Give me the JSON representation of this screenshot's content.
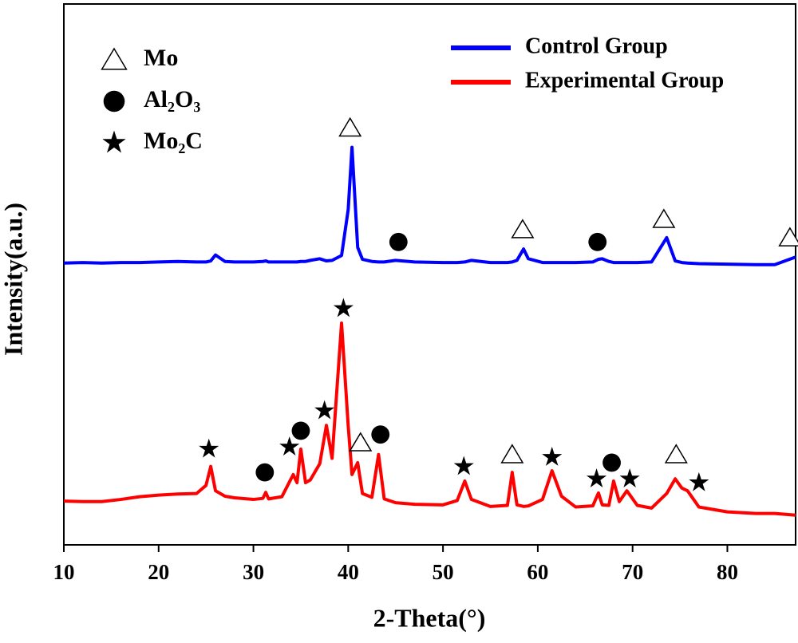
{
  "chart_data": {
    "type": "line",
    "xlabel": "2-Theta(°)",
    "ylabel": "Intensity(a.u.)",
    "xlim": [
      10,
      87.2
    ],
    "xticks": [
      10,
      20,
      30,
      40,
      50,
      60,
      70,
      80
    ],
    "ylim": [
      0,
      100
    ],
    "legend": "upper right",
    "x": [
      10,
      12,
      14,
      16,
      18,
      20,
      22,
      24,
      25,
      25.5,
      26,
      27,
      28,
      30,
      31,
      31.3,
      31.6,
      33,
      34.2,
      34.6,
      35,
      35.5,
      36,
      37,
      37.7,
      38.3,
      39.3,
      40.0,
      40.4,
      41.0,
      41.5,
      42.5,
      43.2,
      43.8,
      45,
      47,
      50,
      51.5,
      52.3,
      53,
      55,
      56.8,
      57.3,
      57.8,
      58.5,
      59,
      60.5,
      61.5,
      62.5,
      64,
      65.8,
      66.4,
      66.8,
      67.5,
      68.0,
      68.6,
      69.4,
      70.5,
      72,
      73.6,
      74.5,
      75.2,
      75.8,
      77,
      80,
      83,
      85,
      87.2
    ],
    "series": [
      {
        "name": "Control Group",
        "color": "#0000ff",
        "values": [
          52.1,
          52.2,
          52.1,
          52.2,
          52.2,
          52.3,
          52.4,
          52.3,
          52.3,
          52.5,
          53.6,
          52.4,
          52.3,
          52.3,
          52.4,
          52.5,
          52.3,
          52.3,
          52.3,
          52.3,
          52.4,
          52.4,
          52.6,
          52.9,
          52.5,
          52.6,
          53.5,
          62,
          73.5,
          55,
          52.8,
          52.4,
          52.3,
          52.3,
          52.6,
          52.3,
          52.2,
          52.2,
          52.3,
          52.6,
          52.2,
          52.2,
          52.3,
          52.6,
          54.7,
          52.9,
          52.2,
          52.2,
          52.2,
          52.2,
          52.3,
          52.8,
          52.9,
          52.4,
          52.2,
          52.2,
          52.2,
          52.2,
          52.3,
          56.8,
          52.5,
          52.2,
          52.1,
          52,
          51.9,
          51.8,
          51.8,
          53.2
        ]
      },
      {
        "name": "Experimental Group",
        "color": "#ff0000",
        "values": [
          8.1,
          8.0,
          8.0,
          8.4,
          8.9,
          9.2,
          9.4,
          9.5,
          11,
          14.5,
          10,
          9,
          8.7,
          8.4,
          8.6,
          9.7,
          8.5,
          8.9,
          13,
          11.5,
          17.7,
          11.5,
          12,
          15,
          22.1,
          16,
          41,
          22,
          13,
          15.2,
          9.5,
          8.8,
          16.7,
          8.5,
          7.8,
          7.5,
          7.4,
          8.2,
          11.8,
          8.4,
          7.1,
          7.3,
          13.4,
          7.4,
          7.1,
          7.2,
          8.4,
          13.7,
          9,
          7,
          7.2,
          9.6,
          7.4,
          7.3,
          11.8,
          8,
          10,
          7.3,
          6.8,
          9.5,
          12.2,
          10.5,
          10,
          7,
          6.1,
          5.8,
          5.8,
          5.5
        ]
      }
    ],
    "phases": [
      {
        "name": "Mo",
        "symbol": "triangle",
        "points": [
          {
            "x": 40.2,
            "y": 77.1
          },
          {
            "x": 58.4,
            "y": 58.3
          },
          {
            "x": 73.3,
            "y": 60.2
          },
          {
            "x": 86.6,
            "y": 56.8
          },
          {
            "x": 41.3,
            "y": 18.9
          },
          {
            "x": 57.3,
            "y": 16.7
          },
          {
            "x": 74.6,
            "y": 16.7
          }
        ]
      },
      {
        "name": "Al₂O₃",
        "symbol": "circle",
        "points": [
          {
            "x": 45.3,
            "y": 56
          },
          {
            "x": 66.3,
            "y": 56
          },
          {
            "x": 31.2,
            "y": 13.4
          },
          {
            "x": 35.0,
            "y": 21.1
          },
          {
            "x": 43.4,
            "y": 20.4
          },
          {
            "x": 67.8,
            "y": 15.2
          }
        ]
      },
      {
        "name": "Mo₂C",
        "symbol": "star",
        "points": [
          {
            "x": 39.5,
            "y": 43.7
          },
          {
            "x": 25.3,
            "y": 17.7
          },
          {
            "x": 33.8,
            "y": 18.1
          },
          {
            "x": 37.5,
            "y": 24.8
          },
          {
            "x": 52.2,
            "y": 14.5
          },
          {
            "x": 61.5,
            "y": 16.2
          },
          {
            "x": 66.2,
            "y": 12.2
          },
          {
            "x": 69.7,
            "y": 12.2
          },
          {
            "x": 77,
            "y": 11.5
          }
        ]
      }
    ]
  }
}
